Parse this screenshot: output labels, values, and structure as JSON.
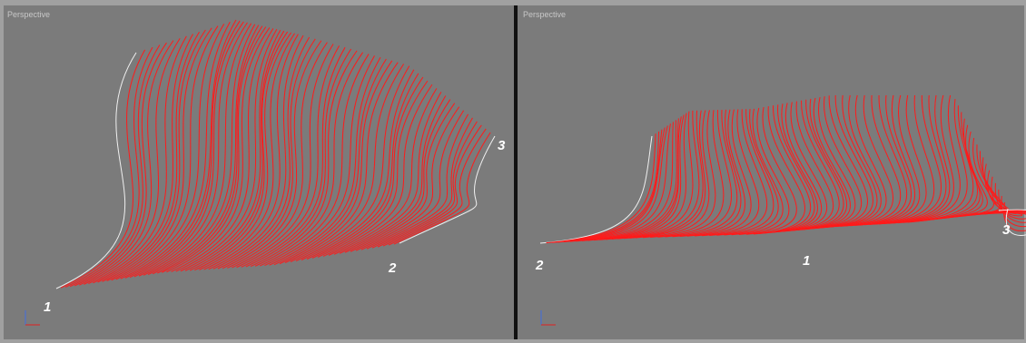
{
  "viewports": [
    {
      "label": "Perspective",
      "markers": [
        "1",
        "2",
        "3"
      ]
    },
    {
      "label": "Perspective",
      "markers": [
        "2",
        "1",
        "3"
      ]
    }
  ]
}
